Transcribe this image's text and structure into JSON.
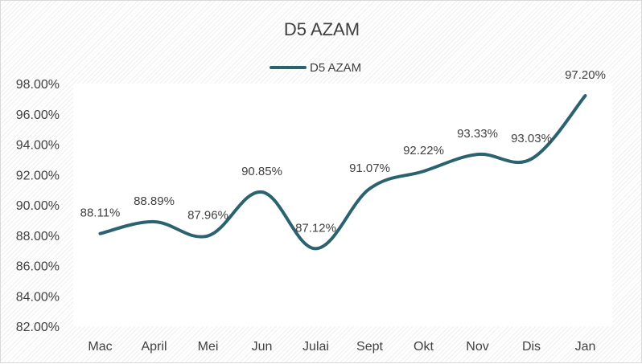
{
  "chart_data": {
    "type": "line",
    "title": "D5 AZAM",
    "xlabel": "",
    "ylabel": "",
    "categories": [
      "Mac",
      "April",
      "Mei",
      "Jun",
      "Julai",
      "Sept",
      "Okt",
      "Nov",
      "Dis",
      "Jan"
    ],
    "series": [
      {
        "name": "D5 AZAM",
        "values": [
          88.11,
          88.89,
          87.96,
          90.85,
          87.12,
          91.07,
          92.22,
          93.33,
          93.03,
          97.2
        ],
        "labels": [
          "88.11%",
          "88.89%",
          "87.96%",
          "90.85%",
          "87.12%",
          "91.07%",
          "92.22%",
          "93.33%",
          "93.03%",
          "97.20%"
        ],
        "color": "#2a6270"
      }
    ],
    "ylim": [
      82,
      98
    ],
    "yticks": [
      "82.00%",
      "84.00%",
      "86.00%",
      "88.00%",
      "90.00%",
      "92.00%",
      "94.00%",
      "96.00%",
      "98.00%"
    ],
    "ytick_values": [
      82,
      84,
      86,
      88,
      90,
      92,
      94,
      96,
      98
    ],
    "legend_position": "top",
    "grid": false
  }
}
